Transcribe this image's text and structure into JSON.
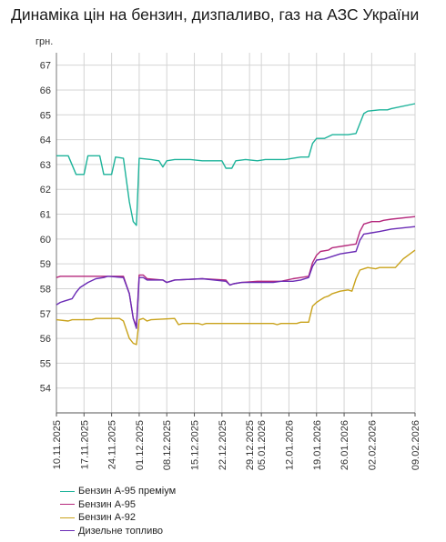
{
  "chart_data": {
    "type": "line",
    "title": "Динаміка цін на бензин, дизпаливо, газ на АЗС України",
    "ylabel": "грн.",
    "xlabel": "",
    "ylim": [
      53,
      67.5
    ],
    "yticks": [
      "54",
      "55",
      "56",
      "57",
      "58",
      "59",
      "60",
      "61",
      "62",
      "63",
      "64",
      "65",
      "66",
      "67"
    ],
    "xlim": [
      0,
      91
    ],
    "xticks": [
      {
        "x": 0,
        "label": "10.11.2025"
      },
      {
        "x": 7,
        "label": "17.11.2025"
      },
      {
        "x": 14,
        "label": "24.11.2025"
      },
      {
        "x": 21,
        "label": "01.12.2025"
      },
      {
        "x": 28,
        "label": "08.12.2025"
      },
      {
        "x": 35,
        "label": "15.12.2025"
      },
      {
        "x": 42,
        "label": "22.12.2025"
      },
      {
        "x": 49,
        "label": "29.12.2025"
      },
      {
        "x": 52,
        "label": "05.01.2026"
      },
      {
        "x": 59,
        "label": "12.01.2026"
      },
      {
        "x": 66,
        "label": "19.01.2026"
      },
      {
        "x": 73,
        "label": "26.01.2026"
      },
      {
        "x": 80,
        "label": "02.02.2026"
      },
      {
        "x": 91,
        "label": "09.02.2026"
      }
    ],
    "grid": true,
    "legend_position": "bottom",
    "series": [
      {
        "name": "Бензин А-95 преміум",
        "color": "#1db39a",
        "points": [
          [
            0,
            63.35
          ],
          [
            3,
            63.35
          ],
          [
            5,
            62.6
          ],
          [
            7,
            62.6
          ],
          [
            8,
            63.35
          ],
          [
            11,
            63.35
          ],
          [
            12,
            62.6
          ],
          [
            14,
            62.6
          ],
          [
            15,
            63.3
          ],
          [
            17,
            63.25
          ],
          [
            18.5,
            61.5
          ],
          [
            19.5,
            60.7
          ],
          [
            20.3,
            60.55
          ],
          [
            21,
            63.25
          ],
          [
            24,
            63.2
          ],
          [
            26,
            63.15
          ],
          [
            27,
            62.9
          ],
          [
            28,
            63.15
          ],
          [
            30,
            63.2
          ],
          [
            34,
            63.2
          ],
          [
            37,
            63.15
          ],
          [
            40,
            63.15
          ],
          [
            42,
            63.15
          ],
          [
            43,
            62.85
          ],
          [
            44.5,
            62.85
          ],
          [
            45.5,
            63.15
          ],
          [
            48,
            63.2
          ],
          [
            51,
            63.15
          ],
          [
            53,
            63.2
          ],
          [
            58,
            63.2
          ],
          [
            62,
            63.3
          ],
          [
            64,
            63.3
          ],
          [
            65,
            63.85
          ],
          [
            66,
            64.05
          ],
          [
            68,
            64.05
          ],
          [
            70,
            64.2
          ],
          [
            74,
            64.2
          ],
          [
            76,
            64.25
          ],
          [
            78,
            65.05
          ],
          [
            79,
            65.15
          ],
          [
            82,
            65.2
          ],
          [
            84,
            65.2
          ],
          [
            85,
            65.25
          ],
          [
            91,
            65.45
          ]
        ]
      },
      {
        "name": "Бензин А-95",
        "color": "#b5287c",
        "points": [
          [
            0,
            58.45
          ],
          [
            1,
            58.5
          ],
          [
            14,
            58.5
          ],
          [
            15,
            58.5
          ],
          [
            17,
            58.5
          ],
          [
            18.5,
            57.8
          ],
          [
            19.5,
            56.8
          ],
          [
            20.3,
            56.5
          ],
          [
            21,
            58.55
          ],
          [
            22,
            58.55
          ],
          [
            23,
            58.4
          ],
          [
            27,
            58.35
          ],
          [
            28,
            58.25
          ],
          [
            30,
            58.35
          ],
          [
            37,
            58.4
          ],
          [
            43,
            58.35
          ],
          [
            44,
            58.15
          ],
          [
            45,
            58.2
          ],
          [
            47,
            58.25
          ],
          [
            51,
            58.3
          ],
          [
            57,
            58.3
          ],
          [
            60,
            58.4
          ],
          [
            62,
            58.45
          ],
          [
            64,
            58.5
          ],
          [
            65,
            59.05
          ],
          [
            66,
            59.35
          ],
          [
            67,
            59.5
          ],
          [
            69,
            59.55
          ],
          [
            70,
            59.65
          ],
          [
            74,
            59.75
          ],
          [
            76,
            59.8
          ],
          [
            77,
            60.3
          ],
          [
            78,
            60.6
          ],
          [
            80,
            60.7
          ],
          [
            82,
            60.7
          ],
          [
            83,
            60.75
          ],
          [
            85,
            60.8
          ],
          [
            91,
            60.9
          ]
        ]
      },
      {
        "name": "Бензин А-92",
        "color": "#c9a21a",
        "points": [
          [
            0,
            56.75
          ],
          [
            3,
            56.7
          ],
          [
            4,
            56.75
          ],
          [
            9,
            56.75
          ],
          [
            10,
            56.8
          ],
          [
            16,
            56.8
          ],
          [
            17,
            56.7
          ],
          [
            18.5,
            56.0
          ],
          [
            19.5,
            55.8
          ],
          [
            20.3,
            55.75
          ],
          [
            21,
            56.75
          ],
          [
            22,
            56.8
          ],
          [
            23,
            56.7
          ],
          [
            24,
            56.75
          ],
          [
            30,
            56.8
          ],
          [
            31,
            56.55
          ],
          [
            32,
            56.6
          ],
          [
            36,
            56.6
          ],
          [
            37,
            56.55
          ],
          [
            38,
            56.6
          ],
          [
            50,
            56.6
          ],
          [
            55,
            56.6
          ],
          [
            56,
            56.55
          ],
          [
            57,
            56.6
          ],
          [
            61,
            56.6
          ],
          [
            62,
            56.65
          ],
          [
            64,
            56.65
          ],
          [
            65,
            57.3
          ],
          [
            66,
            57.45
          ],
          [
            67,
            57.55
          ],
          [
            68,
            57.65
          ],
          [
            69,
            57.7
          ],
          [
            70,
            57.8
          ],
          [
            72,
            57.9
          ],
          [
            74,
            57.95
          ],
          [
            75,
            57.9
          ],
          [
            76,
            58.4
          ],
          [
            77,
            58.75
          ],
          [
            78,
            58.8
          ],
          [
            79,
            58.85
          ],
          [
            81,
            58.8
          ],
          [
            82,
            58.85
          ],
          [
            86,
            58.85
          ],
          [
            88,
            59.2
          ],
          [
            91,
            59.55
          ]
        ]
      },
      {
        "name": "Дизельне топливо",
        "color": "#6a2bb5",
        "points": [
          [
            0,
            57.35
          ],
          [
            1,
            57.45
          ],
          [
            2,
            57.5
          ],
          [
            4,
            57.6
          ],
          [
            5,
            57.85
          ],
          [
            6,
            58.05
          ],
          [
            8,
            58.25
          ],
          [
            10,
            58.4
          ],
          [
            12,
            58.45
          ],
          [
            13,
            58.5
          ],
          [
            17,
            58.45
          ],
          [
            18.5,
            57.8
          ],
          [
            19.5,
            56.8
          ],
          [
            20.3,
            56.4
          ],
          [
            21,
            58.45
          ],
          [
            22,
            58.45
          ],
          [
            23,
            58.35
          ],
          [
            27,
            58.35
          ],
          [
            28,
            58.25
          ],
          [
            30,
            58.35
          ],
          [
            37,
            58.4
          ],
          [
            43,
            58.3
          ],
          [
            44,
            58.15
          ],
          [
            45,
            58.2
          ],
          [
            47,
            58.25
          ],
          [
            55,
            58.25
          ],
          [
            57,
            58.3
          ],
          [
            60,
            58.3
          ],
          [
            62,
            58.35
          ],
          [
            64,
            58.45
          ],
          [
            65,
            58.9
          ],
          [
            66,
            59.15
          ],
          [
            68,
            59.2
          ],
          [
            70,
            59.3
          ],
          [
            72,
            59.4
          ],
          [
            74,
            59.45
          ],
          [
            76,
            59.5
          ],
          [
            77,
            59.95
          ],
          [
            78,
            60.2
          ],
          [
            80,
            60.25
          ],
          [
            82,
            60.3
          ],
          [
            85,
            60.4
          ],
          [
            91,
            60.5
          ]
        ]
      }
    ]
  }
}
